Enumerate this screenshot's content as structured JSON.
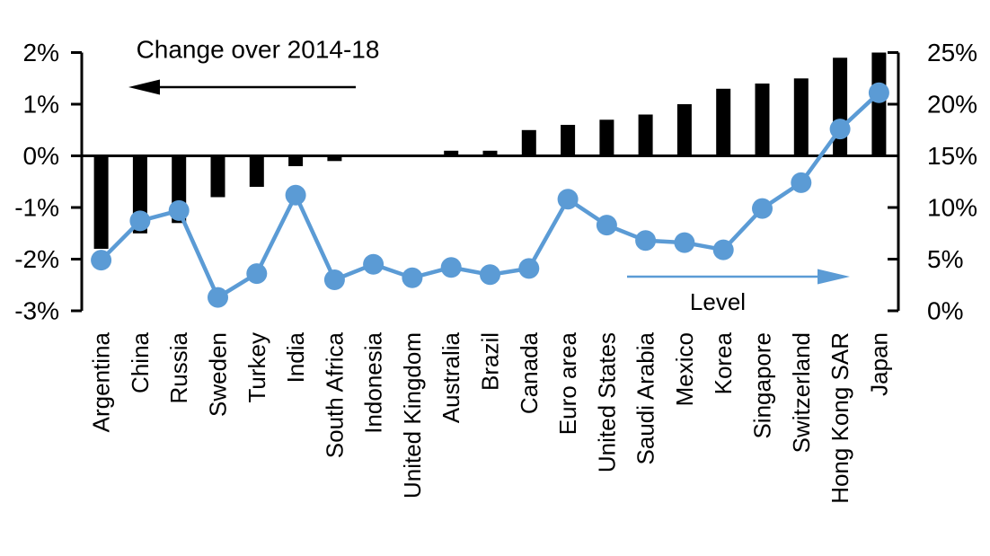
{
  "chart_data": {
    "type": "combo",
    "title": "",
    "grid": false,
    "legend": "none",
    "categories": [
      "Argentina",
      "China",
      "Russia",
      "Sweden",
      "Turkey",
      "India",
      "South Africa",
      "Indonesia",
      "United Kingdom",
      "Australia",
      "Brazil",
      "Canada",
      "Euro area",
      "United States",
      "Saudi Arabia",
      "Mexico",
      "Korea",
      "Singapore",
      "Switzerland",
      "Hong Kong SAR",
      "Japan"
    ],
    "series": [
      {
        "name": "Change over 2014-18",
        "type": "bar",
        "axis": "left",
        "unit": "percentage points",
        "color": "#000000",
        "values": [
          -1.8,
          -1.5,
          -1.3,
          -0.8,
          -0.6,
          -0.2,
          -0.1,
          0,
          0,
          0.1,
          0.1,
          0.5,
          0.6,
          0.7,
          0.8,
          1.0,
          1.3,
          1.4,
          1.5,
          1.9,
          2.0
        ]
      },
      {
        "name": "Level",
        "type": "line",
        "axis": "right",
        "unit": "%",
        "color": "#5B9BD5",
        "values": [
          4.9,
          8.7,
          9.7,
          1.3,
          3.6,
          11.2,
          3.0,
          4.5,
          3.2,
          4.2,
          3.5,
          4.1,
          10.8,
          8.3,
          6.8,
          6.6,
          5.9,
          9.9,
          12.4,
          17.6,
          21.1
        ]
      }
    ],
    "left_axis": {
      "tick_labels": [
        "2%",
        "1%",
        "0%",
        "-1%",
        "-2%",
        "-3%"
      ],
      "tick_values": [
        2,
        1,
        0,
        -1,
        -2,
        -3
      ],
      "range": [
        -3,
        2
      ]
    },
    "right_axis": {
      "tick_labels": [
        "25%",
        "20%",
        "15%",
        "10%",
        "5%",
        "0%"
      ],
      "tick_values": [
        25,
        20,
        15,
        10,
        5,
        0
      ],
      "range": [
        0,
        25
      ]
    },
    "annotations": [
      {
        "text": "Change over 2014-18",
        "arrow": "left",
        "color": "#000000"
      },
      {
        "text": "Level",
        "arrow": "right",
        "color": "#5B9BD5"
      }
    ]
  },
  "colors": {
    "bar": "#000000",
    "line": "#5B9BD5",
    "background": "#FFFFFF"
  }
}
